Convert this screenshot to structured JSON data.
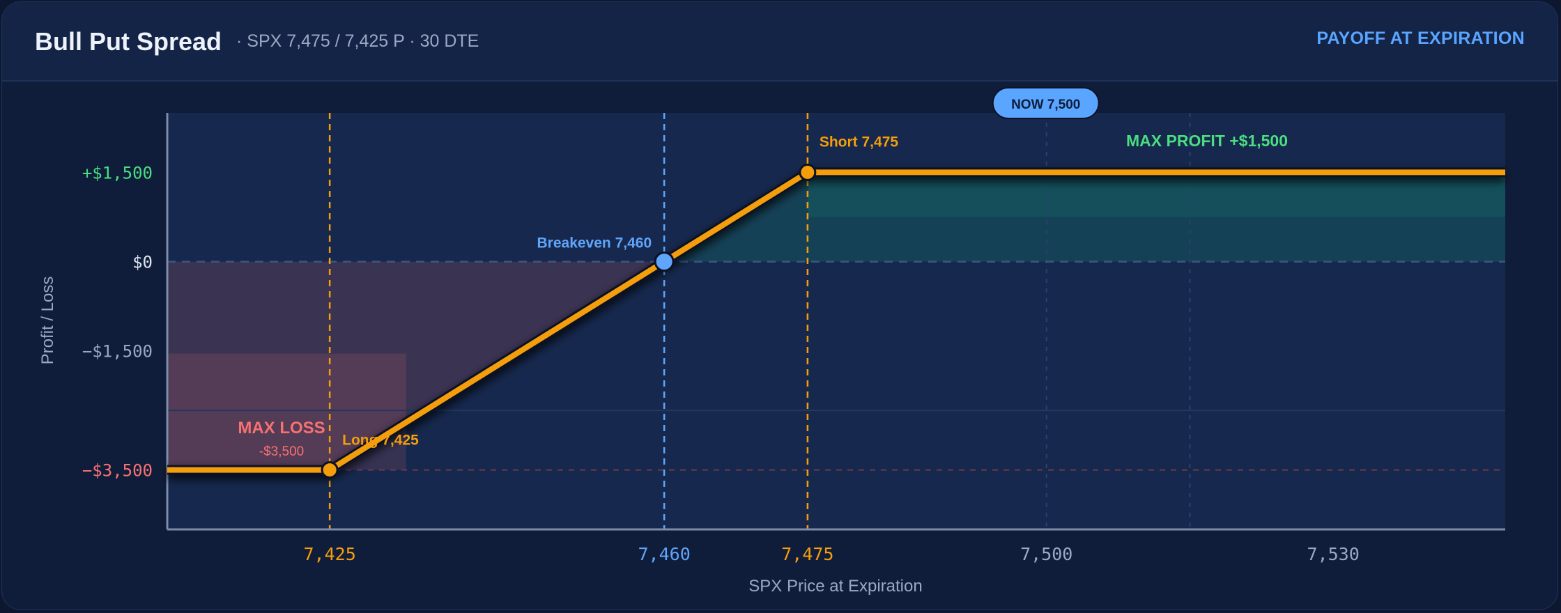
{
  "header": {
    "title": "Bull Put Spread",
    "subtitle": "SPX 7,475 / 7,425 P · 30 DTE",
    "mode": "PAYOFF AT EXPIRATION"
  },
  "colors": {
    "payoff_line": "#f59e0b",
    "profit": "#4ade80",
    "loss": "#f87171",
    "breakeven": "#60a5fa",
    "axis_text": "#9aa8c2"
  },
  "chart_data": {
    "type": "line",
    "title": "",
    "xlabel": "SPX Price at Expiration",
    "ylabel": "Profit / Loss",
    "xlim": [
      7408,
      7548
    ],
    "ylim": [
      -4500,
      2500
    ],
    "x_ticks": [
      {
        "value": 7425,
        "label": "7,425",
        "role": "strike"
      },
      {
        "value": 7460,
        "label": "7,460",
        "role": "breakeven"
      },
      {
        "value": 7475,
        "label": "7,475",
        "role": "strike"
      },
      {
        "value": 7500,
        "label": "7,500",
        "role": "plain"
      },
      {
        "value": 7530,
        "label": "7,530",
        "role": "plain"
      }
    ],
    "y_ticks": [
      {
        "value": 1500,
        "label": "+$1,500",
        "role": "profit"
      },
      {
        "value": 0,
        "label": "$0",
        "role": "zero"
      },
      {
        "value": -1500,
        "label": "−$1,500",
        "role": "plain"
      },
      {
        "value": -3500,
        "label": "−$3,500",
        "role": "loss"
      }
    ],
    "series": [
      {
        "x": [
          7408,
          7425,
          7460,
          7475,
          7548
        ],
        "y": [
          -3500,
          -3500,
          0,
          1500,
          1500
        ]
      }
    ],
    "markers": [
      {
        "x": 7425,
        "y": -3500,
        "label": "Long 7,425",
        "kind": "strike"
      },
      {
        "x": 7460,
        "y": 0,
        "label": "Breakeven 7,460",
        "kind": "breakeven"
      },
      {
        "x": 7475,
        "y": 1500,
        "label": "Short 7,475",
        "kind": "strike"
      }
    ],
    "current_price": {
      "x": 7500,
      "label": "NOW 7,500"
    },
    "annotations": {
      "max_profit": "MAX PROFIT  +$1,500",
      "max_loss": "MAX LOSS",
      "max_loss_value": "-$3,500"
    },
    "grid": true
  }
}
